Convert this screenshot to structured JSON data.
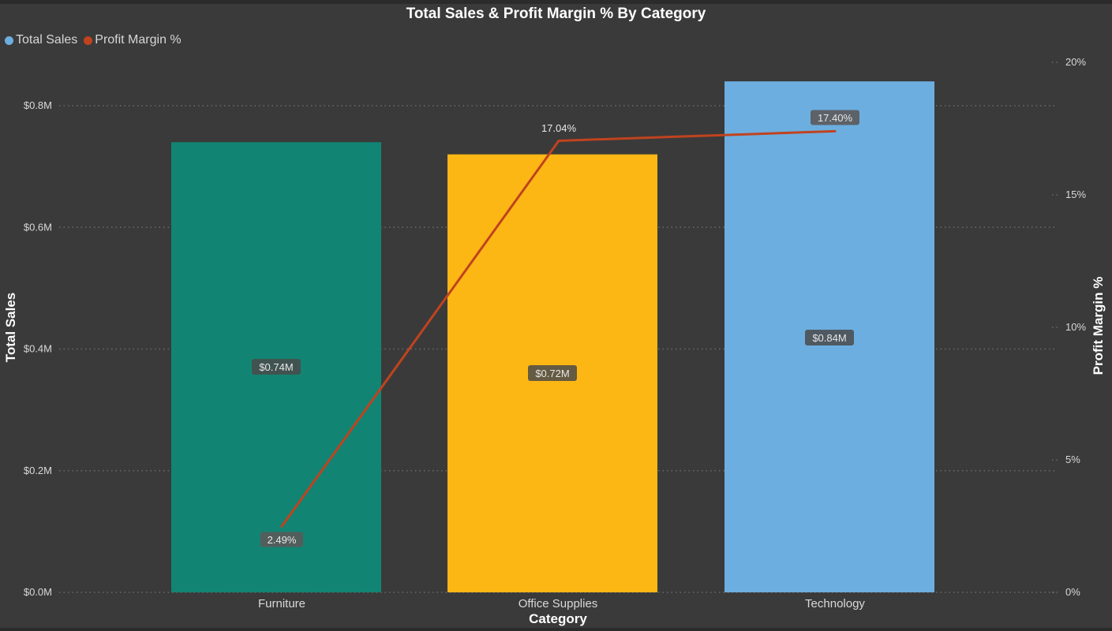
{
  "chart_data": {
    "type": "bar",
    "title": "Total Sales & Profit Margin % By Category",
    "xlabel": "Category",
    "ylabel": "Total Sales",
    "y2label": "Profit Margin %",
    "categories": [
      "Furniture",
      "Office Supplies",
      "Technology"
    ],
    "series": [
      {
        "name": "Total Sales",
        "kind": "bar",
        "axis": "left",
        "values": [
          0.74,
          0.72,
          0.84
        ],
        "labels": [
          "$0.74M",
          "$0.72M",
          "$0.84M"
        ],
        "colors": [
          "#128473",
          "#fdb715",
          "#6daee0"
        ]
      },
      {
        "name": "Profit Margin %",
        "kind": "line",
        "axis": "right",
        "values": [
          2.49,
          17.04,
          17.4
        ],
        "labels": [
          "2.49%",
          "17.04%",
          "17.40%"
        ],
        "color": "#c0431f"
      }
    ],
    "ylim": [
      0,
      0.8
    ],
    "yticks": [
      {
        "value": 0,
        "label": "$0.0M"
      },
      {
        "value": 0.2,
        "label": "$0.2M"
      },
      {
        "value": 0.4,
        "label": "$0.4M"
      },
      {
        "value": 0.6,
        "label": "$0.6M"
      },
      {
        "value": 0.8,
        "label": "$0.8M"
      }
    ],
    "y2lim": [
      0,
      20
    ],
    "y2ticks": [
      {
        "value": 0,
        "label": "0%"
      },
      {
        "value": 5,
        "label": "5%"
      },
      {
        "value": 10,
        "label": "10%"
      },
      {
        "value": 15,
        "label": "15%"
      },
      {
        "value": 20,
        "label": "20%"
      }
    ],
    "grid": true,
    "legend_position": "top-left"
  },
  "legend": {
    "items": [
      {
        "label": "Total Sales",
        "color": "#6daee0"
      },
      {
        "label": "Profit Margin %",
        "color": "#c0431f"
      }
    ]
  }
}
